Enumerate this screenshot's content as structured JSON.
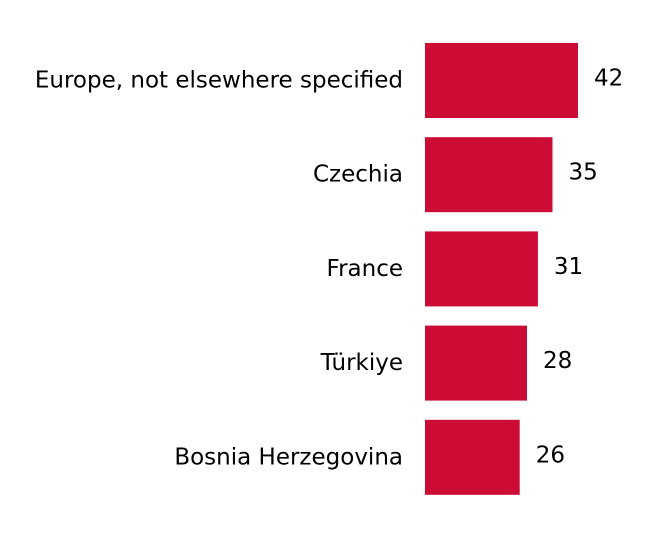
{
  "chart_data": {
    "type": "bar",
    "orientation": "horizontal",
    "categories": [
      "Europe, not elsewhere specified",
      "Czechia",
      "France",
      "Türkiye",
      "Bosnia Herzegovina"
    ],
    "values": [
      42,
      35,
      31,
      28,
      26
    ],
    "data_labels": [
      "42",
      "35",
      "31",
      "28",
      "26"
    ],
    "title": "",
    "xlabel": "",
    "ylabel": "",
    "xlim": [
      0,
      42
    ],
    "grid": false,
    "legend": "none",
    "colors": {
      "bar": "#cc0c35",
      "text": "#000000",
      "background": "#ffffff"
    }
  }
}
